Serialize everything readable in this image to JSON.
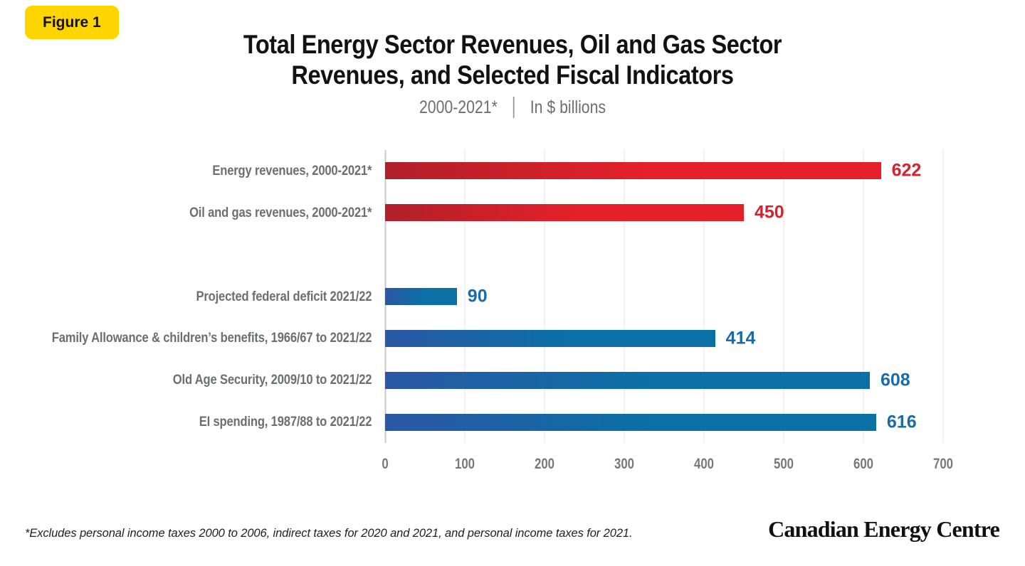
{
  "figure_label": "Figure 1",
  "header": {
    "title_lines": [
      "Total Energy Sector Revenues, Oil and Gas Sector",
      "Revenues, and Selected Fiscal Indicators"
    ],
    "subtitle_period": "2000-2021*",
    "subtitle_units": "In $ billions"
  },
  "footnote": "*Excludes personal income taxes 2000 to 2006, indirect taxes for 2020 and 2021, and personal income taxes for 2021.",
  "brand": "Canadian Energy Centre",
  "colors": {
    "badge_bg": "#ffd500",
    "bar_red_start": "#b1202a",
    "bar_red_end": "#e6202a",
    "bar_blue_start": "#2b57a4",
    "bar_blue_end": "#0a70a5",
    "value_red": "#d2232e",
    "value_blue": "#1b6ba6",
    "label_gray": "#6d6e71",
    "grid": "#e4e5e7",
    "axis": "#c9cacc"
  },
  "chart_data": {
    "type": "bar",
    "orientation": "horizontal",
    "title": "Total Energy Sector Revenues, Oil and Gas Sector Revenues, and Selected Fiscal Indicators",
    "subtitle": "2000-2021* | In $ billions",
    "xlabel": "",
    "ylabel": "",
    "xlim": [
      0,
      700
    ],
    "xticks": [
      0,
      100,
      200,
      300,
      400,
      500,
      600,
      700
    ],
    "grid": true,
    "value_labels": true,
    "legend": "none",
    "rows": [
      {
        "label": "Energy revenues, 2000-2021*",
        "value": 622,
        "series": "energy"
      },
      {
        "label": "Oil and gas revenues, 2000-2021*",
        "value": 450,
        "series": "energy"
      },
      {
        "spacer": true
      },
      {
        "label": "Projected federal deficit 2021/22",
        "value": 90,
        "series": "fiscal"
      },
      {
        "label": "Family Allowance & children’s benefits, 1966/67 to 2021/22",
        "value": 414,
        "series": "fiscal"
      },
      {
        "label": "Old Age Security, 2009/10 to 2021/22",
        "value": 608,
        "series": "fiscal"
      },
      {
        "label": "EI spending, 1987/88 to 2021/22",
        "value": 616,
        "series": "fiscal"
      }
    ],
    "series_colors": {
      "energy": "#d2232e",
      "fiscal": "#1b6ba6"
    }
  }
}
